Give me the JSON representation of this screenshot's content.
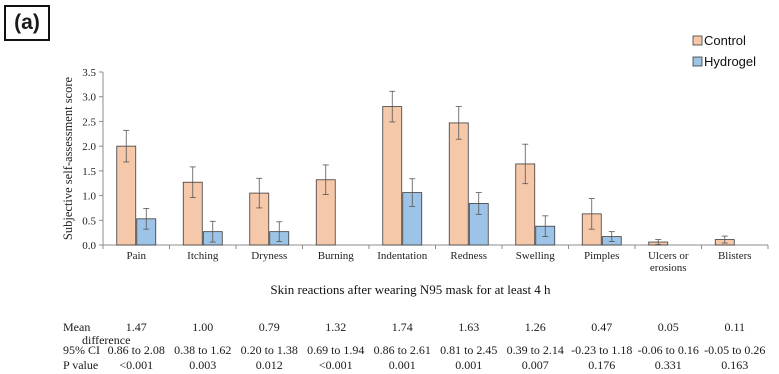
{
  "panel_label": "(a)",
  "chart_data": {
    "type": "bar",
    "title": "",
    "xlabel": "Skin reactions after wearing N95 mask for at least 4 h",
    "ylabel": "Subjective self-assessment score",
    "ylim": [
      0,
      3.5
    ],
    "yticks": [
      "0.0",
      "0.5",
      "1.0",
      "1.5",
      "2.0",
      "2.5",
      "3.0",
      "3.5"
    ],
    "grid": false,
    "legend_position": "top-right",
    "categories": [
      "Pain",
      "Itching",
      "Dryness",
      "Burning",
      "Indentation",
      "Redness",
      "Swelling",
      "Pimples",
      "Ulcers or\nerosions",
      "Blisters"
    ],
    "series": [
      {
        "name": "Control",
        "color": "#f6c8aa",
        "values": [
          2.0,
          1.27,
          1.05,
          1.32,
          2.8,
          2.47,
          1.64,
          0.63,
          0.06,
          0.11
        ],
        "errors": [
          0.32,
          0.31,
          0.3,
          0.3,
          0.31,
          0.33,
          0.4,
          0.31,
          0.05,
          0.07
        ]
      },
      {
        "name": "Hydrogel",
        "color": "#9dc3e6",
        "values": [
          0.53,
          0.27,
          0.27,
          0.0,
          1.06,
          0.84,
          0.38,
          0.17,
          0.0,
          0.0
        ],
        "errors": [
          0.21,
          0.21,
          0.2,
          0.0,
          0.28,
          0.22,
          0.21,
          0.1,
          0.0,
          0.0
        ]
      }
    ]
  },
  "stats_table": {
    "row_labels": [
      "Mean",
      "difference",
      "95% CI",
      "P value"
    ],
    "mean_difference": [
      "1.47",
      "1.00",
      "0.79",
      "1.32",
      "1.74",
      "1.63",
      "1.26",
      "0.47",
      "0.05",
      "0.11"
    ],
    "ci_95": [
      "0.86 to 2.08",
      "0.38 to 1.62",
      "0.20 to 1.38",
      "0.69 to 1.94",
      "0.86 to 2.61",
      "0.81 to 2.45",
      "0.39 to 2.14",
      "-0.23 to 1.18",
      "-0.06 to 0.16",
      "-0.05 to 0.26"
    ],
    "p_value": [
      "<0.001",
      "0.003",
      "0.012",
      "<0.001",
      "0.001",
      "0.001",
      "0.007",
      "0.176",
      "0.331",
      "0.163"
    ]
  }
}
